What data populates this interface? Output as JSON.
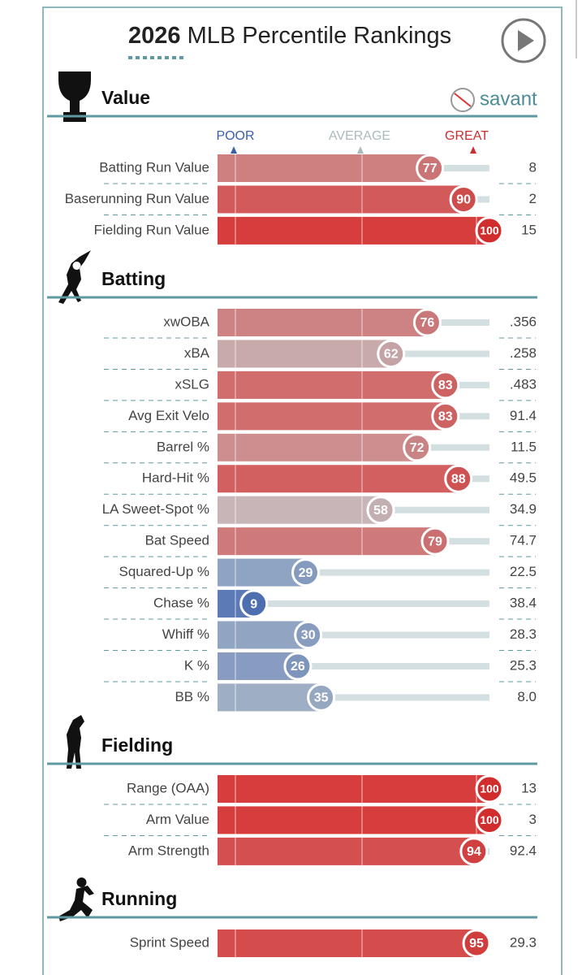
{
  "header": {
    "title_year": "2026",
    "title_rest": "MLB Percentile Rankings",
    "brand": "savant"
  },
  "scale": {
    "poor": "POOR",
    "average": "AVERAGE",
    "great": "GREAT"
  },
  "sections": [
    {
      "title": "Value",
      "rows": [
        {
          "label": "Batting Run Value",
          "percentile": 77,
          "value": "8"
        },
        {
          "label": "Baserunning Run Value",
          "percentile": 90,
          "value": "2"
        },
        {
          "label": "Fielding Run Value",
          "percentile": 100,
          "value": "15"
        }
      ]
    },
    {
      "title": "Batting",
      "rows": [
        {
          "label": "xwOBA",
          "percentile": 76,
          "value": ".356"
        },
        {
          "label": "xBA",
          "percentile": 62,
          "value": ".258"
        },
        {
          "label": "xSLG",
          "percentile": 83,
          "value": ".483"
        },
        {
          "label": "Avg Exit Velo",
          "percentile": 83,
          "value": "91.4"
        },
        {
          "label": "Barrel %",
          "percentile": 72,
          "value": "11.5"
        },
        {
          "label": "Hard-Hit %",
          "percentile": 88,
          "value": "49.5"
        },
        {
          "label": "LA Sweet-Spot %",
          "percentile": 58,
          "value": "34.9"
        },
        {
          "label": "Bat Speed",
          "percentile": 79,
          "value": "74.7"
        },
        {
          "label": "Squared-Up %",
          "percentile": 29,
          "value": "22.5"
        },
        {
          "label": "Chase %",
          "percentile": 9,
          "value": "38.4"
        },
        {
          "label": "Whiff %",
          "percentile": 30,
          "value": "28.3"
        },
        {
          "label": "K %",
          "percentile": 26,
          "value": "25.3"
        },
        {
          "label": "BB %",
          "percentile": 35,
          "value": "8.0"
        }
      ]
    },
    {
      "title": "Fielding",
      "rows": [
        {
          "label": "Range (OAA)",
          "percentile": 100,
          "value": "13"
        },
        {
          "label": "Arm Value",
          "percentile": 100,
          "value": "3"
        },
        {
          "label": "Arm Strength",
          "percentile": 94,
          "value": "92.4"
        }
      ]
    },
    {
      "title": "Running",
      "rows": [
        {
          "label": "Sprint Speed",
          "percentile": 95,
          "value": "29.3"
        }
      ]
    }
  ]
}
